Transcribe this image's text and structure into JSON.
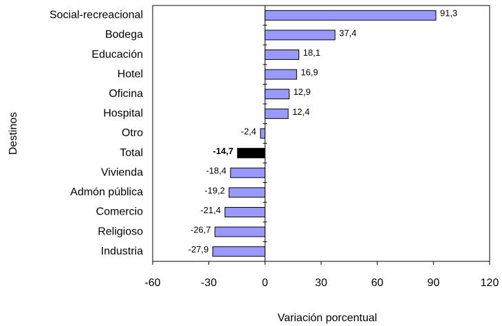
{
  "chart_data": {
    "type": "bar",
    "orientation": "horizontal",
    "x_label": "Variación porcentual",
    "y_label": "Destinos",
    "categories": [
      "Social-recreacional",
      "Bodega",
      "Educación",
      "Hotel",
      "Oficina",
      "Hospital",
      "Otro",
      "Total",
      "Vivienda",
      "Admón pública",
      "Comercio",
      "Religioso",
      "Industria"
    ],
    "values": [
      91.3,
      37.4,
      18.1,
      16.9,
      12.9,
      12.4,
      -2.4,
      -14.7,
      -18.4,
      -19.2,
      -21.4,
      -26.7,
      -27.9
    ],
    "value_labels": [
      "91,3",
      "37,4",
      "18,1",
      "16,9",
      "12,9",
      "12,4",
      "-2,4",
      "-14,7",
      "-18,4",
      "-19,2",
      "-21,4",
      "-26,7",
      "-27,9"
    ],
    "colors": [
      "#9999ff",
      "#9999ff",
      "#9999ff",
      "#9999ff",
      "#9999ff",
      "#9999ff",
      "#9999ff",
      "#000000",
      "#9999ff",
      "#9999ff",
      "#9999ff",
      "#9999ff",
      "#9999ff"
    ],
    "xlim": [
      -60,
      120
    ],
    "xticks": [
      -60,
      -30,
      0,
      30,
      60,
      90,
      120
    ],
    "grid": false
  }
}
